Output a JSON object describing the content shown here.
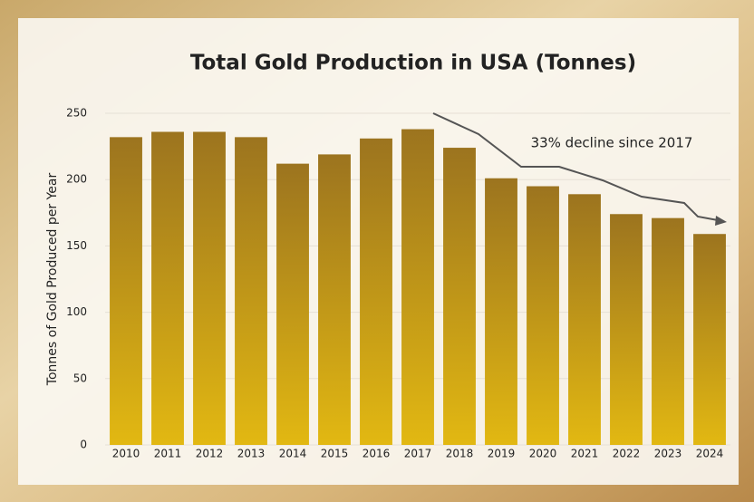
{
  "chart_data": {
    "type": "bar",
    "title": "Total Gold Production in USA (Tonnes)",
    "y_label": "Tonnes of Gold Produced per Year",
    "annotation": "33% decline since 2017",
    "categories": [
      "2010",
      "2011",
      "2012",
      "2013",
      "2014",
      "2015",
      "2016",
      "2017",
      "2018",
      "2019",
      "2020",
      "2021",
      "2022",
      "2023",
      "2024"
    ],
    "values": [
      232,
      236,
      236,
      232,
      212,
      219,
      231,
      238,
      224,
      201,
      195,
      189,
      174,
      171,
      159
    ],
    "color": "#9c741f",
    "ylim": [
      0,
      250
    ],
    "yticks": [
      0,
      50,
      100,
      150,
      200,
      250
    ],
    "grid": true
  }
}
